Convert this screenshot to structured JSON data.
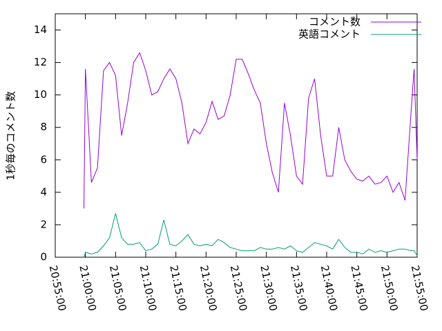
{
  "chart_data": {
    "type": "line",
    "ylabel": "1秒毎のコメント数",
    "x": [
      "20:59:45",
      "21:00:00",
      "21:01:00",
      "21:02:00",
      "21:03:00",
      "21:04:00",
      "21:05:00",
      "21:06:00",
      "21:07:00",
      "21:08:00",
      "21:09:00",
      "21:10:00",
      "21:11:00",
      "21:12:00",
      "21:13:00",
      "21:14:00",
      "21:15:00",
      "21:16:00",
      "21:17:00",
      "21:18:00",
      "21:19:00",
      "21:20:00",
      "21:21:00",
      "21:22:00",
      "21:23:00",
      "21:24:00",
      "21:25:00",
      "21:26:00",
      "21:27:00",
      "21:28:00",
      "21:29:00",
      "21:30:00",
      "21:31:00",
      "21:32:00",
      "21:33:00",
      "21:34:00",
      "21:35:00",
      "21:36:00",
      "21:37:00",
      "21:38:00",
      "21:39:00",
      "21:40:00",
      "21:41:00",
      "21:42:00",
      "21:43:00",
      "21:44:00",
      "21:45:00",
      "21:46:00",
      "21:47:00",
      "21:48:00",
      "21:49:00",
      "21:50:00",
      "21:51:00",
      "21:52:00",
      "21:53:00",
      "21:54:00",
      "21:54:30",
      "21:55:00"
    ],
    "series": [
      {
        "name": "コメント数",
        "color": "#9400d3",
        "values": [
          3,
          11.6,
          4.6,
          5.5,
          11.5,
          12.0,
          11.2,
          7.5,
          9.5,
          12.0,
          12.6,
          11.5,
          10.0,
          10.2,
          11.0,
          11.6,
          11.0,
          9.5,
          7.0,
          7.9,
          7.6,
          8.3,
          9.6,
          8.5,
          8.7,
          10.0,
          12.2,
          12.2,
          11.3,
          10.3,
          9.5,
          7.0,
          5.2,
          4.0,
          9.5,
          7.5,
          5.0,
          4.5,
          9.8,
          11.0,
          7.5,
          5.0,
          5.0,
          8.0,
          6.0,
          5.3,
          4.8,
          4.7,
          5.0,
          4.5,
          4.6,
          5.0,
          4.0,
          4.6,
          3.5,
          9.0,
          11.6,
          6
        ]
      },
      {
        "name": "英語コメント",
        "color": "#009e73",
        "values": [
          0,
          0.3,
          0.2,
          0.3,
          0.7,
          1.2,
          2.7,
          1.2,
          0.8,
          0.8,
          0.9,
          0.4,
          0.5,
          0.8,
          2.3,
          0.8,
          0.7,
          1.0,
          1.4,
          0.8,
          0.7,
          0.8,
          0.7,
          1.1,
          0.9,
          0.6,
          0.5,
          0.4,
          0.4,
          0.4,
          0.6,
          0.5,
          0.5,
          0.6,
          0.5,
          0.7,
          0.4,
          0.3,
          0.6,
          0.9,
          0.8,
          0.7,
          0.5,
          1.1,
          0.6,
          0.3,
          0.3,
          0.2,
          0.5,
          0.3,
          0.4,
          0.3,
          0.4,
          0.5,
          0.5,
          0.4,
          0.4,
          0.1
        ]
      }
    ],
    "xlim": [
      "20:55:00",
      "21:55:00"
    ],
    "xticks": [
      "20:55:00",
      "21:00:00",
      "21:05:00",
      "21:10:00",
      "21:15:00",
      "21:20:00",
      "21:25:00",
      "21:30:00",
      "21:35:00",
      "21:40:00",
      "21:45:00",
      "21:50:00",
      "21:55:00"
    ],
    "ylim": [
      0,
      15
    ],
    "yticks": [
      0,
      2,
      4,
      6,
      8,
      10,
      12,
      14
    ],
    "grid": false,
    "legend": "top-right"
  }
}
